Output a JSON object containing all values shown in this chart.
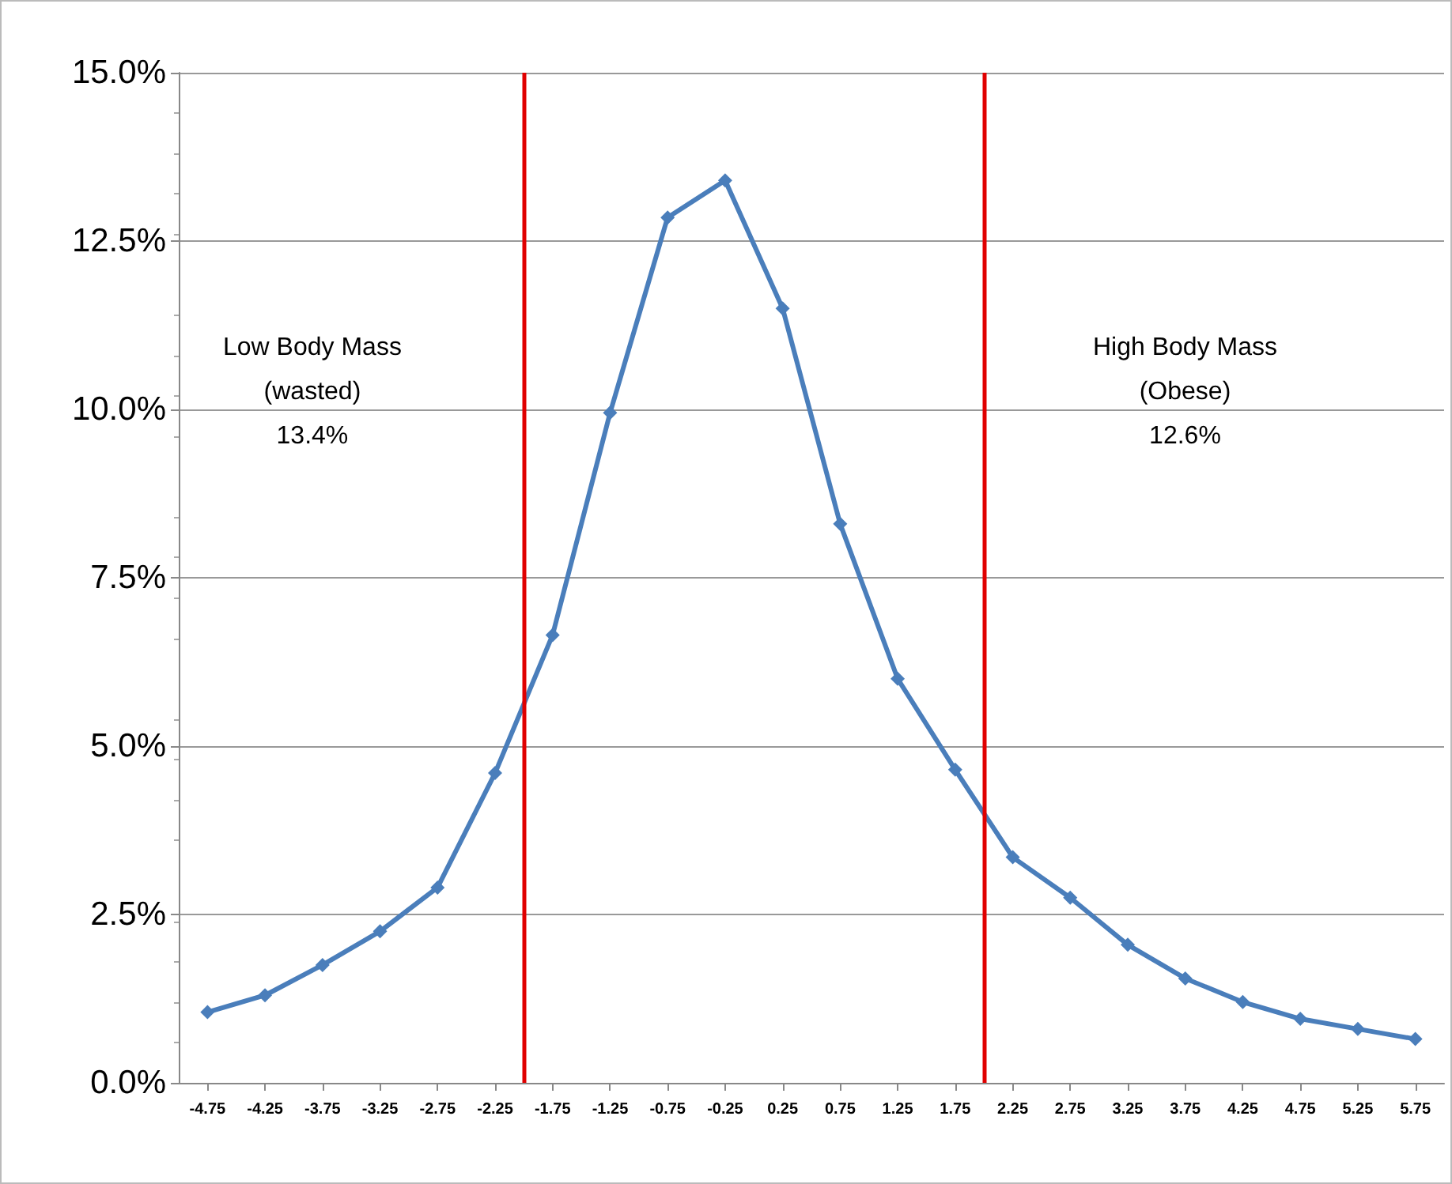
{
  "chart_data": {
    "type": "line",
    "x": [
      -4.75,
      -4.25,
      -3.75,
      -3.25,
      -2.75,
      -2.25,
      -1.75,
      -1.25,
      -0.75,
      -0.25,
      0.25,
      0.75,
      1.25,
      1.75,
      2.25,
      2.75,
      3.25,
      3.75,
      4.25,
      4.75,
      5.25,
      5.75
    ],
    "series": [
      {
        "color": "#4a7ebb",
        "values": [
          1.05,
          1.3,
          1.75,
          2.25,
          2.9,
          4.6,
          6.65,
          9.95,
          12.85,
          13.4,
          11.5,
          8.3,
          6.0,
          4.65,
          3.35,
          2.75,
          2.05,
          1.55,
          1.2,
          0.95,
          0.8,
          0.65
        ]
      }
    ],
    "xlim": [
      -5,
      6
    ],
    "xticks": [
      -4.75,
      -4.25,
      -3.75,
      -3.25,
      -2.75,
      -2.25,
      -1.75,
      -1.25,
      -0.75,
      -0.25,
      0.25,
      0.75,
      1.25,
      1.75,
      2.25,
      2.75,
      3.25,
      3.75,
      4.25,
      4.75,
      5.25,
      5.75
    ],
    "ylim": [
      0,
      15
    ],
    "yticks": [
      {
        "value": 0,
        "label": "0.0%"
      },
      {
        "value": 2.5,
        "label": "2.5%"
      },
      {
        "value": 5,
        "label": "5.0%"
      },
      {
        "value": 7.5,
        "label": "7.5%"
      },
      {
        "value": 10,
        "label": "10.0%"
      },
      {
        "value": 12.5,
        "label": "12.5%"
      },
      {
        "value": 15,
        "label": "15.0%"
      }
    ],
    "grid": "y",
    "marker": "diamond",
    "line_style": "solid",
    "ref_lines": [
      {
        "axis": "x",
        "value": -2,
        "color": "#e00000"
      },
      {
        "axis": "x",
        "value": 2,
        "color": "#e00000"
      }
    ],
    "annotations": [
      "Low Body Mass\n(wasted)\n13.4%",
      "High Body Mass\n(Obese)\n12.6%"
    ]
  }
}
